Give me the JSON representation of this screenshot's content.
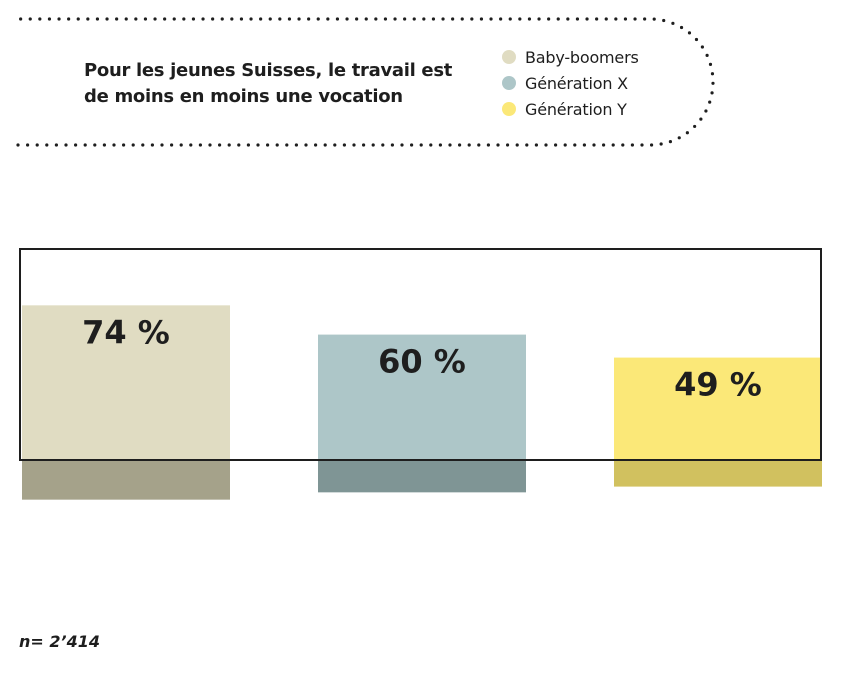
{
  "header": {
    "title_line1": "Pour les jeunes Suisses, le travail est",
    "title_line2": "de moins en moins une vocation"
  },
  "legend": {
    "items": [
      {
        "label": "Baby-boomers",
        "color": "#e0dcc2"
      },
      {
        "label": "Génération X",
        "color": "#adc6c8"
      },
      {
        "label": "Génération Y",
        "color": "#fbe878"
      }
    ]
  },
  "chart_data": {
    "type": "bar",
    "categories": [
      "Baby-boomers",
      "Génération X",
      "Génération Y"
    ],
    "values": [
      74,
      60,
      49
    ],
    "value_labels": [
      "74 %",
      "60 %",
      "49 %"
    ],
    "unit": "%",
    "colors": [
      "#e0dcc2",
      "#adc6c8",
      "#fbe878"
    ],
    "shadow_colors": [
      "#a5a28a",
      "#7f9595",
      "#d1c15f"
    ],
    "legend_position": "top-right",
    "grid": false,
    "ylim": [
      0,
      100
    ]
  },
  "footnote": "n= 2’414"
}
